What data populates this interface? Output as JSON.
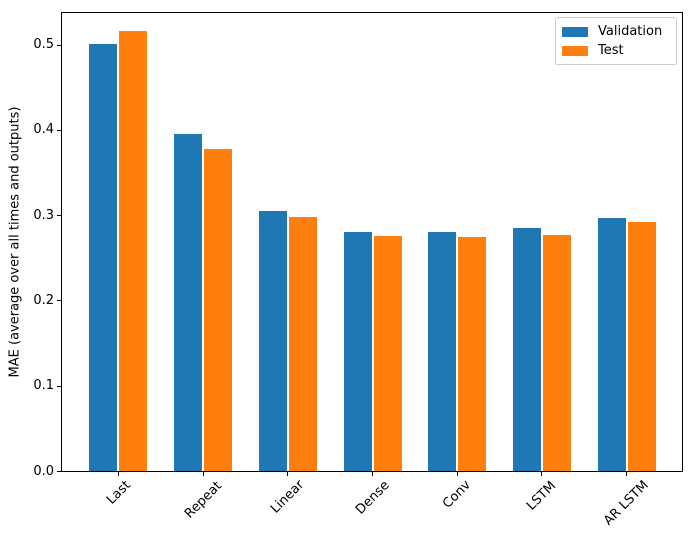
{
  "chart_data": {
    "type": "bar",
    "title": "",
    "xlabel": "",
    "ylabel": "MAE (average over all times and outputs)",
    "categories": [
      "Last",
      "Repeat",
      "Linear",
      "Dense",
      "Conv",
      "LSTM",
      "AR LSTM"
    ],
    "series": [
      {
        "name": "Validation",
        "color": "#1f77b4",
        "values": [
          0.501,
          0.395,
          0.305,
          0.28,
          0.28,
          0.285,
          0.297
        ]
      },
      {
        "name": "Test",
        "color": "#ff7f0e",
        "values": [
          0.516,
          0.377,
          0.298,
          0.276,
          0.274,
          0.277,
          0.292
        ]
      }
    ],
    "ylim": [
      0,
      0.537
    ],
    "ytick_labels": [
      "0.0",
      "0.1",
      "0.2",
      "0.3",
      "0.4",
      "0.5"
    ],
    "ytick_values": [
      0.0,
      0.1,
      0.2,
      0.3,
      0.4,
      0.5
    ],
    "x_tick_rotation": 45,
    "grid": false,
    "legend_position": "upper right",
    "background": "#ffffff",
    "axis_color": "#000000"
  }
}
